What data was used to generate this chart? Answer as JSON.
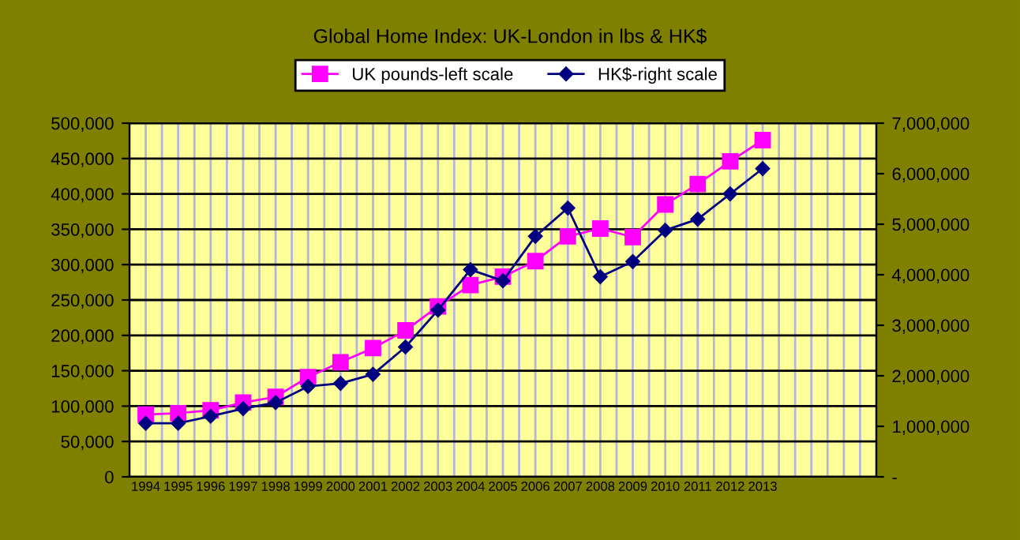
{
  "chart_data": {
    "type": "line",
    "title": "Global Home Index: UK-London in lbs & HK$",
    "categories": [
      "1994",
      "1995",
      "1996",
      "1997",
      "1998",
      "1999",
      "2000",
      "2001",
      "2002",
      "2003",
      "2004",
      "2005",
      "2006",
      "2007",
      "2008",
      "2009",
      "2010",
      "2011",
      "2012",
      "2013",
      null,
      null,
      null
    ],
    "series": [
      {
        "name": "UK pounds-left scale",
        "color": "#ff00ff",
        "marker": "square",
        "values": [
          88000,
          90000,
          94000,
          105000,
          113000,
          141000,
          162000,
          182000,
          207000,
          241000,
          271000,
          283000,
          305000,
          340000,
          351000,
          339000,
          385000,
          414000,
          446000,
          476000,
          null,
          null,
          null
        ]
      },
      {
        "name": "HK$-right scale",
        "color": "#000080",
        "marker": "diamond",
        "axis": "y2",
        "values": [
          1060000,
          1060000,
          1200000,
          1350000,
          1470000,
          1790000,
          1850000,
          2030000,
          2570000,
          3300000,
          4100000,
          3880000,
          4760000,
          5320000,
          3960000,
          4260000,
          4880000,
          5100000,
          5600000,
          6100000,
          null,
          null,
          null
        ]
      }
    ],
    "ylim": [
      0,
      500000
    ],
    "yticks": [
      {
        "value": 0,
        "label": "0"
      },
      {
        "value": 50000,
        "label": "50,000"
      },
      {
        "value": 100000,
        "label": "100,000"
      },
      {
        "value": 150000,
        "label": "150,000"
      },
      {
        "value": 200000,
        "label": "200,000"
      },
      {
        "value": 250000,
        "label": "250,000"
      },
      {
        "value": 300000,
        "label": "300,000"
      },
      {
        "value": 350000,
        "label": "350,000"
      },
      {
        "value": 400000,
        "label": "400,000"
      },
      {
        "value": 450000,
        "label": "450,000"
      },
      {
        "value": 500000,
        "label": "500,000"
      }
    ],
    "y2lim": [
      0,
      7000000
    ],
    "y2ticks": [
      {
        "value": 0,
        "label": "-"
      },
      {
        "value": 1000000,
        "label": "1,000,000"
      },
      {
        "value": 2000000,
        "label": "2,000,000"
      },
      {
        "value": 3000000,
        "label": "3,000,000"
      },
      {
        "value": 4000000,
        "label": "4,000,000"
      },
      {
        "value": 5000000,
        "label": "5,000,000"
      },
      {
        "value": 6000000,
        "label": "6,000,000"
      },
      {
        "value": 7000000,
        "label": "7,000,000"
      }
    ],
    "grid": true,
    "legend": "top",
    "line_style": "solid"
  }
}
